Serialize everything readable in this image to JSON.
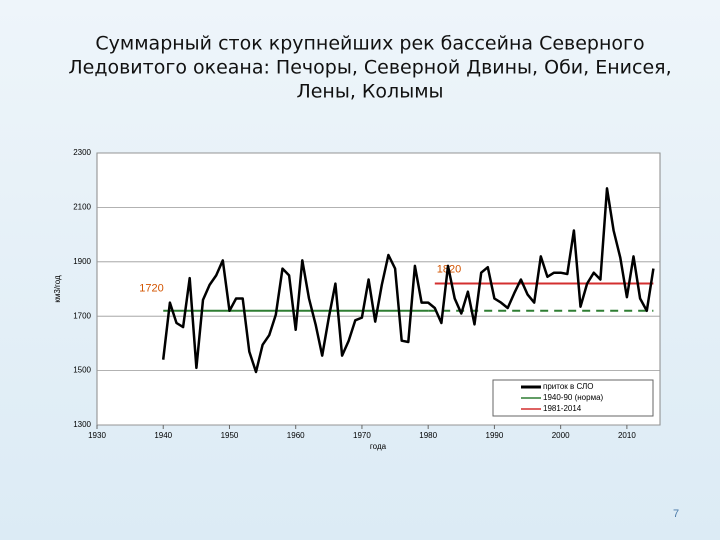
{
  "chart_data": {
    "type": "line",
    "title_lines": [
      "Суммарный сток крупнейших рек бассейна Северного",
      "Ледовитого океана: Печоры, Северной Двины, Оби, Енисея,",
      "Лены, Колымы"
    ],
    "x_label": "года",
    "y_label": "км3/год",
    "x": [
      1940,
      1941,
      1942,
      1943,
      1944,
      1945,
      1946,
      1947,
      1948,
      1949,
      1950,
      1951,
      1952,
      1953,
      1954,
      1955,
      1956,
      1957,
      1958,
      1959,
      1960,
      1961,
      1962,
      1963,
      1964,
      1965,
      1966,
      1967,
      1968,
      1969,
      1970,
      1971,
      1972,
      1973,
      1974,
      1975,
      1976,
      1977,
      1978,
      1979,
      1980,
      1981,
      1982,
      1983,
      1984,
      1985,
      1986,
      1987,
      1988,
      1989,
      1990,
      1991,
      1992,
      1993,
      1994,
      1995,
      1996,
      1997,
      1998,
      1999,
      2000,
      2001,
      2002,
      2003,
      2004,
      2005,
      2006,
      2007,
      2008,
      2009,
      2010,
      2011,
      2012,
      2013,
      2014
    ],
    "series": [
      {
        "name": "приток в СЛО",
        "color": "#000000",
        "values": [
          1540,
          1750,
          1675,
          1660,
          1840,
          1510,
          1760,
          1815,
          1850,
          1905,
          1720,
          1765,
          1765,
          1570,
          1495,
          1595,
          1630,
          1705,
          1875,
          1850,
          1650,
          1905,
          1765,
          1670,
          1555,
          1695,
          1820,
          1555,
          1610,
          1685,
          1695,
          1835,
          1680,
          1815,
          1925,
          1875,
          1610,
          1605,
          1885,
          1750,
          1750,
          1730,
          1675,
          1885,
          1765,
          1710,
          1790,
          1670,
          1860,
          1880,
          1765,
          1750,
          1730,
          1785,
          1835,
          1780,
          1750,
          1920,
          1845,
          1860,
          1860,
          1855,
          2015,
          1735,
          1820,
          1860,
          1835,
          2170,
          2015,
          1915,
          1770,
          1920,
          1765,
          1720,
          1875
        ]
      }
    ],
    "reference_lines": [
      {
        "name": "1940-90 (норма)",
        "color": "#2e7d32",
        "value": 1720,
        "x": [
          1940,
          2014
        ],
        "dashed_from": 1980
      },
      {
        "name": "1981-2014",
        "color": "#d32f2f",
        "value": 1820,
        "x": [
          1981,
          2014
        ]
      }
    ],
    "xlim": [
      1930,
      2015
    ],
    "xticks": [
      1930,
      1940,
      1950,
      1960,
      1970,
      1980,
      1990,
      2000,
      2010
    ],
    "ylim": [
      1300,
      2300
    ],
    "yticks": [
      1300,
      1500,
      1700,
      1900,
      2100,
      2300
    ],
    "grid": true,
    "page_number": "7"
  }
}
